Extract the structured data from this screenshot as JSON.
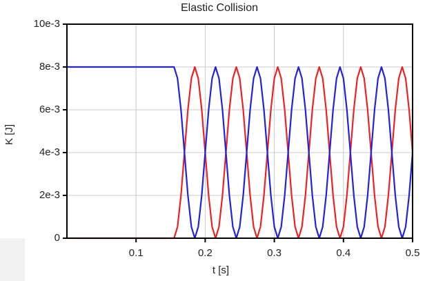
{
  "chart_data": {
    "type": "line",
    "title": "Elastic Collision",
    "xlabel": "t [s]",
    "ylabel": "K [J]",
    "x": [
      0,
      0.005,
      0.01,
      0.015,
      0.02,
      0.025,
      0.03,
      0.035,
      0.04,
      0.045,
      0.05,
      0.055,
      0.06,
      0.065,
      0.07,
      0.075,
      0.08,
      0.085,
      0.09,
      0.095,
      0.1,
      0.105,
      0.11,
      0.115,
      0.12,
      0.125,
      0.13,
      0.135,
      0.14,
      0.145,
      0.15,
      0.155,
      0.16,
      0.165,
      0.17,
      0.175,
      0.18,
      0.185,
      0.19,
      0.195,
      0.2,
      0.205,
      0.21,
      0.215,
      0.22,
      0.225,
      0.23,
      0.235,
      0.24,
      0.245,
      0.25,
      0.255,
      0.26,
      0.265,
      0.27,
      0.275,
      0.28,
      0.285,
      0.29,
      0.295,
      0.3,
      0.305,
      0.31,
      0.315,
      0.32,
      0.325,
      0.33,
      0.335,
      0.34,
      0.345,
      0.35,
      0.355,
      0.36,
      0.365,
      0.37,
      0.375,
      0.38,
      0.385,
      0.39,
      0.395,
      0.4,
      0.405,
      0.41,
      0.415,
      0.42,
      0.425,
      0.43,
      0.435,
      0.44,
      0.445,
      0.45,
      0.455,
      0.46,
      0.465,
      0.47,
      0.475,
      0.48,
      0.485,
      0.49,
      0.495,
      0.5
    ],
    "series": [
      {
        "color": "#ee2222",
        "values": [
          0,
          0,
          0,
          0,
          0,
          0,
          0,
          0,
          0,
          0,
          0,
          0,
          0,
          0,
          0,
          0,
          0,
          0,
          0,
          0,
          0,
          0,
          0,
          0,
          0,
          0,
          0,
          0,
          0,
          0,
          0,
          0,
          0.000536,
          0.002,
          0.004,
          0.006,
          0.007464,
          0.008,
          0.007464,
          0.006,
          0.004,
          0.002,
          0.000536,
          0,
          0.000536,
          0.002,
          0.004,
          0.006,
          0.007464,
          0.008,
          0.007464,
          0.006,
          0.004,
          0.002,
          0.000536,
          0,
          0.000536,
          0.002,
          0.004,
          0.006,
          0.007464,
          0.008,
          0.007464,
          0.006,
          0.004,
          0.002,
          0.000536,
          0,
          0.000536,
          0.002,
          0.004,
          0.006,
          0.007464,
          0.008,
          0.007464,
          0.006,
          0.004,
          0.002,
          0.000536,
          0,
          0.000536,
          0.002,
          0.004,
          0.006,
          0.007464,
          0.008,
          0.007464,
          0.006,
          0.004,
          0.002,
          0.000536,
          0,
          0.000536,
          0.002,
          0.004,
          0.006,
          0.007464,
          0.008,
          0.007464,
          0.006,
          0.004
        ]
      },
      {
        "color": "#2222dd",
        "values": [
          0.008,
          0.008,
          0.008,
          0.008,
          0.008,
          0.008,
          0.008,
          0.008,
          0.008,
          0.008,
          0.008,
          0.008,
          0.008,
          0.008,
          0.008,
          0.008,
          0.008,
          0.008,
          0.008,
          0.008,
          0.008,
          0.008,
          0.008,
          0.008,
          0.008,
          0.008,
          0.008,
          0.008,
          0.008,
          0.008,
          0.008,
          0.008,
          0.007464,
          0.006,
          0.004,
          0.002,
          0.000536,
          0,
          0.000536,
          0.002,
          0.004,
          0.006,
          0.007464,
          0.008,
          0.007464,
          0.006,
          0.004,
          0.002,
          0.000536,
          0,
          0.000536,
          0.002,
          0.004,
          0.006,
          0.007464,
          0.008,
          0.007464,
          0.006,
          0.004,
          0.002,
          0.000536,
          0,
          0.000536,
          0.002,
          0.004,
          0.006,
          0.007464,
          0.008,
          0.007464,
          0.006,
          0.004,
          0.002,
          0.000536,
          0,
          0.000536,
          0.002,
          0.004,
          0.006,
          0.007464,
          0.008,
          0.007464,
          0.006,
          0.004,
          0.002,
          0.000536,
          0,
          0.000536,
          0.002,
          0.004,
          0.006,
          0.007464,
          0.008,
          0.007464,
          0.006,
          0.004,
          0.002,
          0.000536,
          0,
          0.000536,
          0.002,
          0.004
        ]
      }
    ],
    "xlim": [
      0,
      0.5
    ],
    "xticks": [
      0.1,
      0.2,
      0.3,
      0.4,
      0.5
    ],
    "ylim": [
      0,
      0.01
    ],
    "yticks": [
      0,
      {
        "value": 0.002,
        "label": "2e-3"
      },
      {
        "value": 0.004,
        "label": "4e-3"
      },
      {
        "value": 0.006,
        "label": "6e-3"
      },
      {
        "value": 0.008,
        "label": "8e-3"
      },
      {
        "value": 0.01,
        "label": "10e-3"
      }
    ],
    "grid": true
  }
}
